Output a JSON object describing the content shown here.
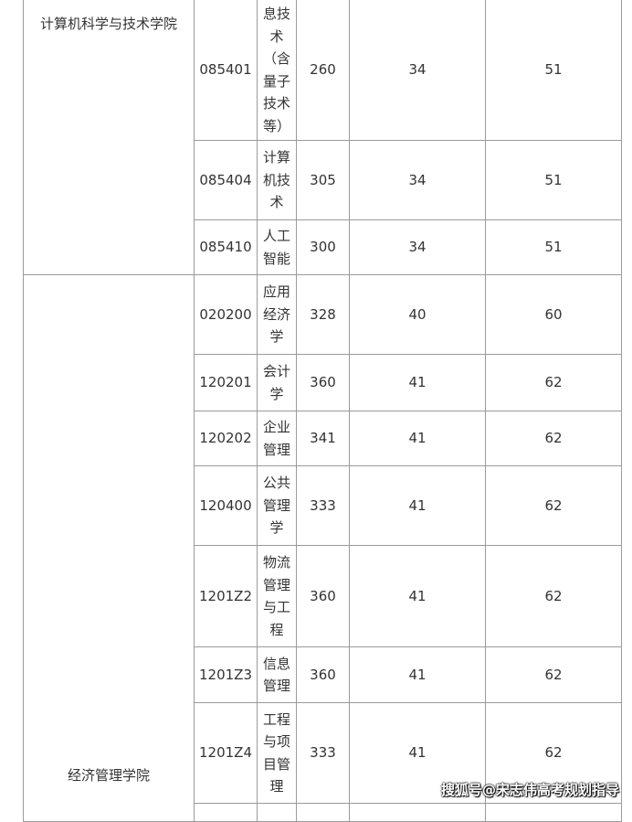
{
  "colleges": [
    {
      "name": "计算机科学与技术学院"
    },
    {
      "name": "经济管理学院"
    }
  ],
  "rows": [
    {
      "code": "085401",
      "major": "息技术（含量子技术等）",
      "score": "260",
      "a": "34",
      "b": "51"
    },
    {
      "code": "085404",
      "major": "计算机技术",
      "score": "305",
      "a": "34",
      "b": "51"
    },
    {
      "code": "085410",
      "major": "人工智能",
      "score": "300",
      "a": "34",
      "b": "51"
    },
    {
      "code": "020200",
      "major": "应用经济学",
      "score": "328",
      "a": "40",
      "b": "60"
    },
    {
      "code": "120201",
      "major": "会计学",
      "score": "360",
      "a": "41",
      "b": "62"
    },
    {
      "code": "120202",
      "major": "企业管理",
      "score": "341",
      "a": "41",
      "b": "62"
    },
    {
      "code": "120400",
      "major": "公共管理学",
      "score": "333",
      "a": "41",
      "b": "62"
    },
    {
      "code": "1201Z2",
      "major": "物流管理与工程",
      "score": "360",
      "a": "41",
      "b": "62"
    },
    {
      "code": "1201Z3",
      "major": "信息管理",
      "score": "360",
      "a": "41",
      "b": "62"
    },
    {
      "code": "1201Z4",
      "major": "工程与项目管理",
      "score": "333",
      "a": "41",
      "b": "62"
    }
  ],
  "watermark": "搜狐号@宋志伟高考规划指导"
}
